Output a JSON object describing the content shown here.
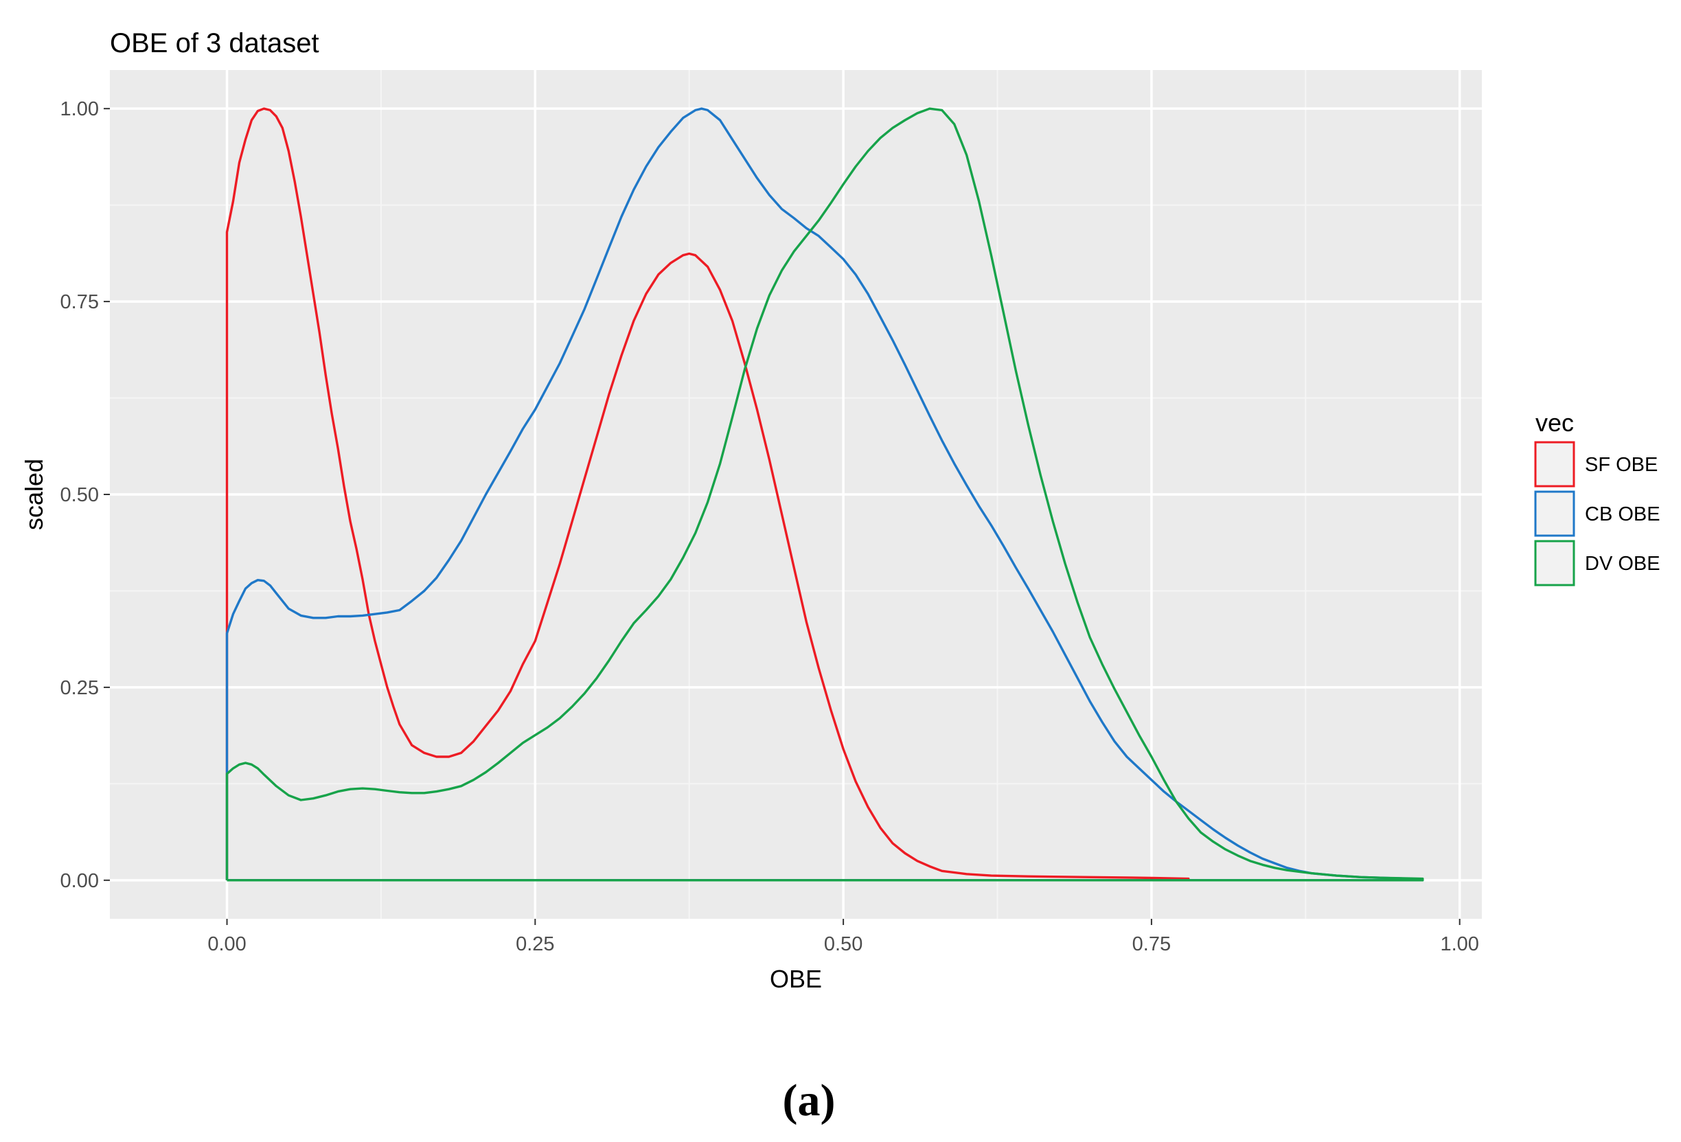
{
  "chart_data": {
    "type": "area",
    "title": "OBE of 3 dataset",
    "xlabel": "OBE",
    "ylabel": "scaled",
    "xlim": [
      -0.095,
      1.018
    ],
    "ylim": [
      -0.05,
      1.05
    ],
    "x_ticks": [
      "0.00",
      "0.25",
      "0.50",
      "0.75",
      "1.00"
    ],
    "y_ticks": [
      "0.00",
      "0.25",
      "0.50",
      "0.75",
      "1.00"
    ],
    "grid": true,
    "legend": {
      "title": "vec",
      "position": "right"
    },
    "series": [
      {
        "name": "SF OBE",
        "color": "#ed1c24",
        "points": [
          [
            0.0,
            0.0
          ],
          [
            0.0,
            0.84
          ],
          [
            0.005,
            0.88
          ],
          [
            0.01,
            0.93
          ],
          [
            0.015,
            0.96
          ],
          [
            0.02,
            0.985
          ],
          [
            0.025,
            0.997
          ],
          [
            0.03,
            1.0
          ],
          [
            0.035,
            0.998
          ],
          [
            0.04,
            0.99
          ],
          [
            0.045,
            0.975
          ],
          [
            0.05,
            0.945
          ],
          [
            0.055,
            0.905
          ],
          [
            0.06,
            0.86
          ],
          [
            0.065,
            0.81
          ],
          [
            0.07,
            0.76
          ],
          [
            0.075,
            0.71
          ],
          [
            0.08,
            0.655
          ],
          [
            0.085,
            0.605
          ],
          [
            0.09,
            0.56
          ],
          [
            0.095,
            0.51
          ],
          [
            0.1,
            0.465
          ],
          [
            0.105,
            0.43
          ],
          [
            0.11,
            0.39
          ],
          [
            0.115,
            0.345
          ],
          [
            0.12,
            0.31
          ],
          [
            0.125,
            0.28
          ],
          [
            0.13,
            0.25
          ],
          [
            0.135,
            0.225
          ],
          [
            0.14,
            0.202
          ],
          [
            0.15,
            0.175
          ],
          [
            0.16,
            0.165
          ],
          [
            0.17,
            0.16
          ],
          [
            0.18,
            0.16
          ],
          [
            0.19,
            0.165
          ],
          [
            0.2,
            0.18
          ],
          [
            0.21,
            0.2
          ],
          [
            0.22,
            0.22
          ],
          [
            0.23,
            0.245
          ],
          [
            0.24,
            0.28
          ],
          [
            0.25,
            0.31
          ],
          [
            0.26,
            0.36
          ],
          [
            0.27,
            0.41
          ],
          [
            0.28,
            0.465
          ],
          [
            0.29,
            0.52
          ],
          [
            0.3,
            0.575
          ],
          [
            0.31,
            0.63
          ],
          [
            0.32,
            0.68
          ],
          [
            0.33,
            0.725
          ],
          [
            0.34,
            0.76
          ],
          [
            0.35,
            0.785
          ],
          [
            0.36,
            0.8
          ],
          [
            0.37,
            0.81
          ],
          [
            0.375,
            0.812
          ],
          [
            0.38,
            0.81
          ],
          [
            0.39,
            0.795
          ],
          [
            0.4,
            0.765
          ],
          [
            0.41,
            0.725
          ],
          [
            0.42,
            0.67
          ],
          [
            0.43,
            0.61
          ],
          [
            0.44,
            0.545
          ],
          [
            0.45,
            0.475
          ],
          [
            0.46,
            0.405
          ],
          [
            0.47,
            0.335
          ],
          [
            0.48,
            0.275
          ],
          [
            0.49,
            0.22
          ],
          [
            0.5,
            0.17
          ],
          [
            0.51,
            0.128
          ],
          [
            0.52,
            0.095
          ],
          [
            0.53,
            0.068
          ],
          [
            0.54,
            0.048
          ],
          [
            0.55,
            0.035
          ],
          [
            0.56,
            0.025
          ],
          [
            0.57,
            0.018
          ],
          [
            0.58,
            0.012
          ],
          [
            0.6,
            0.008
          ],
          [
            0.62,
            0.006
          ],
          [
            0.65,
            0.005
          ],
          [
            0.7,
            0.004
          ],
          [
            0.75,
            0.003
          ],
          [
            0.78,
            0.002
          ],
          [
            0.78,
            0.0
          ],
          [
            0.0,
            0.0
          ]
        ]
      },
      {
        "name": "CB OBE",
        "color": "#1f78c8",
        "points": [
          [
            0.0,
            0.0
          ],
          [
            0.0,
            0.32
          ],
          [
            0.005,
            0.345
          ],
          [
            0.01,
            0.362
          ],
          [
            0.015,
            0.378
          ],
          [
            0.02,
            0.385
          ],
          [
            0.025,
            0.389
          ],
          [
            0.03,
            0.388
          ],
          [
            0.035,
            0.382
          ],
          [
            0.04,
            0.372
          ],
          [
            0.045,
            0.362
          ],
          [
            0.05,
            0.352
          ],
          [
            0.06,
            0.343
          ],
          [
            0.07,
            0.34
          ],
          [
            0.08,
            0.34
          ],
          [
            0.09,
            0.342
          ],
          [
            0.1,
            0.342
          ],
          [
            0.11,
            0.343
          ],
          [
            0.12,
            0.345
          ],
          [
            0.13,
            0.347
          ],
          [
            0.14,
            0.35
          ],
          [
            0.15,
            0.362
          ],
          [
            0.16,
            0.375
          ],
          [
            0.17,
            0.392
          ],
          [
            0.18,
            0.415
          ],
          [
            0.19,
            0.44
          ],
          [
            0.2,
            0.47
          ],
          [
            0.21,
            0.5
          ],
          [
            0.22,
            0.528
          ],
          [
            0.23,
            0.556
          ],
          [
            0.24,
            0.585
          ],
          [
            0.25,
            0.61
          ],
          [
            0.26,
            0.64
          ],
          [
            0.27,
            0.67
          ],
          [
            0.28,
            0.705
          ],
          [
            0.29,
            0.74
          ],
          [
            0.3,
            0.78
          ],
          [
            0.31,
            0.82
          ],
          [
            0.32,
            0.86
          ],
          [
            0.33,
            0.895
          ],
          [
            0.34,
            0.925
          ],
          [
            0.35,
            0.95
          ],
          [
            0.36,
            0.97
          ],
          [
            0.37,
            0.988
          ],
          [
            0.38,
            0.998
          ],
          [
            0.385,
            1.0
          ],
          [
            0.39,
            0.998
          ],
          [
            0.4,
            0.985
          ],
          [
            0.41,
            0.96
          ],
          [
            0.42,
            0.935
          ],
          [
            0.43,
            0.91
          ],
          [
            0.44,
            0.888
          ],
          [
            0.45,
            0.87
          ],
          [
            0.46,
            0.858
          ],
          [
            0.47,
            0.845
          ],
          [
            0.48,
            0.835
          ],
          [
            0.49,
            0.82
          ],
          [
            0.5,
            0.805
          ],
          [
            0.51,
            0.785
          ],
          [
            0.52,
            0.76
          ],
          [
            0.53,
            0.73
          ],
          [
            0.54,
            0.7
          ],
          [
            0.55,
            0.668
          ],
          [
            0.56,
            0.635
          ],
          [
            0.57,
            0.602
          ],
          [
            0.58,
            0.57
          ],
          [
            0.59,
            0.54
          ],
          [
            0.6,
            0.512
          ],
          [
            0.61,
            0.485
          ],
          [
            0.62,
            0.46
          ],
          [
            0.63,
            0.433
          ],
          [
            0.64,
            0.405
          ],
          [
            0.65,
            0.378
          ],
          [
            0.66,
            0.35
          ],
          [
            0.67,
            0.322
          ],
          [
            0.68,
            0.292
          ],
          [
            0.69,
            0.262
          ],
          [
            0.7,
            0.232
          ],
          [
            0.71,
            0.205
          ],
          [
            0.72,
            0.18
          ],
          [
            0.73,
            0.16
          ],
          [
            0.74,
            0.145
          ],
          [
            0.75,
            0.13
          ],
          [
            0.76,
            0.115
          ],
          [
            0.77,
            0.102
          ],
          [
            0.78,
            0.09
          ],
          [
            0.79,
            0.078
          ],
          [
            0.8,
            0.066
          ],
          [
            0.81,
            0.055
          ],
          [
            0.82,
            0.045
          ],
          [
            0.83,
            0.036
          ],
          [
            0.84,
            0.028
          ],
          [
            0.85,
            0.022
          ],
          [
            0.86,
            0.016
          ],
          [
            0.87,
            0.012
          ],
          [
            0.88,
            0.009
          ],
          [
            0.9,
            0.006
          ],
          [
            0.92,
            0.004
          ],
          [
            0.94,
            0.003
          ],
          [
            0.96,
            0.002
          ],
          [
            0.97,
            0.001
          ],
          [
            0.97,
            0.0
          ],
          [
            0.0,
            0.0
          ]
        ]
      },
      {
        "name": "DV OBE",
        "color": "#17a34a",
        "points": [
          [
            0.0,
            0.0
          ],
          [
            0.0,
            0.138
          ],
          [
            0.005,
            0.145
          ],
          [
            0.01,
            0.15
          ],
          [
            0.015,
            0.152
          ],
          [
            0.02,
            0.15
          ],
          [
            0.025,
            0.145
          ],
          [
            0.03,
            0.137
          ],
          [
            0.04,
            0.122
          ],
          [
            0.05,
            0.11
          ],
          [
            0.06,
            0.104
          ],
          [
            0.07,
            0.106
          ],
          [
            0.08,
            0.11
          ],
          [
            0.09,
            0.115
          ],
          [
            0.1,
            0.118
          ],
          [
            0.11,
            0.119
          ],
          [
            0.12,
            0.118
          ],
          [
            0.13,
            0.116
          ],
          [
            0.14,
            0.114
          ],
          [
            0.15,
            0.113
          ],
          [
            0.16,
            0.113
          ],
          [
            0.17,
            0.115
          ],
          [
            0.18,
            0.118
          ],
          [
            0.19,
            0.122
          ],
          [
            0.2,
            0.13
          ],
          [
            0.21,
            0.14
          ],
          [
            0.22,
            0.152
          ],
          [
            0.23,
            0.165
          ],
          [
            0.24,
            0.178
          ],
          [
            0.25,
            0.188
          ],
          [
            0.26,
            0.198
          ],
          [
            0.27,
            0.21
          ],
          [
            0.28,
            0.225
          ],
          [
            0.29,
            0.242
          ],
          [
            0.3,
            0.262
          ],
          [
            0.31,
            0.285
          ],
          [
            0.32,
            0.31
          ],
          [
            0.33,
            0.333
          ],
          [
            0.34,
            0.35
          ],
          [
            0.35,
            0.368
          ],
          [
            0.36,
            0.39
          ],
          [
            0.37,
            0.418
          ],
          [
            0.38,
            0.45
          ],
          [
            0.39,
            0.49
          ],
          [
            0.4,
            0.54
          ],
          [
            0.41,
            0.6
          ],
          [
            0.42,
            0.662
          ],
          [
            0.43,
            0.715
          ],
          [
            0.44,
            0.758
          ],
          [
            0.45,
            0.79
          ],
          [
            0.46,
            0.815
          ],
          [
            0.47,
            0.835
          ],
          [
            0.48,
            0.855
          ],
          [
            0.49,
            0.878
          ],
          [
            0.5,
            0.902
          ],
          [
            0.51,
            0.925
          ],
          [
            0.52,
            0.945
          ],
          [
            0.53,
            0.962
          ],
          [
            0.54,
            0.975
          ],
          [
            0.55,
            0.985
          ],
          [
            0.56,
            0.994
          ],
          [
            0.57,
            1.0
          ],
          [
            0.58,
            0.998
          ],
          [
            0.59,
            0.98
          ],
          [
            0.6,
            0.94
          ],
          [
            0.61,
            0.88
          ],
          [
            0.62,
            0.81
          ],
          [
            0.63,
            0.735
          ],
          [
            0.64,
            0.66
          ],
          [
            0.65,
            0.59
          ],
          [
            0.66,
            0.525
          ],
          [
            0.67,
            0.465
          ],
          [
            0.68,
            0.41
          ],
          [
            0.69,
            0.36
          ],
          [
            0.7,
            0.315
          ],
          [
            0.71,
            0.28
          ],
          [
            0.72,
            0.248
          ],
          [
            0.73,
            0.218
          ],
          [
            0.74,
            0.188
          ],
          [
            0.75,
            0.16
          ],
          [
            0.76,
            0.13
          ],
          [
            0.77,
            0.102
          ],
          [
            0.78,
            0.08
          ],
          [
            0.79,
            0.062
          ],
          [
            0.8,
            0.05
          ],
          [
            0.81,
            0.04
          ],
          [
            0.82,
            0.032
          ],
          [
            0.83,
            0.025
          ],
          [
            0.84,
            0.02
          ],
          [
            0.85,
            0.016
          ],
          [
            0.86,
            0.013
          ],
          [
            0.88,
            0.009
          ],
          [
            0.9,
            0.006
          ],
          [
            0.92,
            0.004
          ],
          [
            0.94,
            0.003
          ],
          [
            0.97,
            0.002
          ],
          [
            0.97,
            0.0
          ],
          [
            0.0,
            0.0
          ]
        ]
      }
    ]
  },
  "figure": {
    "caption": "(a)"
  },
  "colors": {
    "panel_background": "#ebebeb",
    "grid_major": "#ffffff",
    "grid_minor": "#f5f5f5",
    "legend_key_background": "#f2f2f2"
  }
}
